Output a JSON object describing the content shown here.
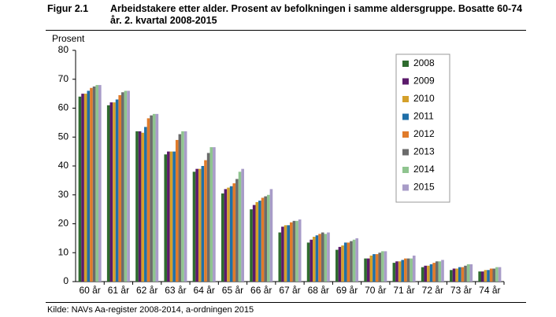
{
  "chart_data": {
    "type": "bar",
    "figure_label": "Figur 2.1",
    "title": "Arbeidstakere etter alder. Prosent av befolkningen i samme aldersgruppe. Bosatte 60-74 år. 2. kvartal 2008-2015",
    "y_label": "Prosent",
    "source": "Kilde: NAVs Aa-register 2008-2014, a-ordningen 2015",
    "categories": [
      "60 år",
      "61 år",
      "62 år",
      "63 år",
      "64 år",
      "65 år",
      "66 år",
      "67 år",
      "68 år",
      "69 år",
      "70 år",
      "71 år",
      "72 år",
      "73 år",
      "74 år"
    ],
    "series": [
      {
        "name": "2008",
        "color": "#2e6b2e",
        "values": [
          64,
          61,
          52,
          44,
          38,
          30.5,
          25,
          17,
          13.5,
          11,
          8,
          6.5,
          5,
          4,
          3.5
        ]
      },
      {
        "name": "2009",
        "color": "#5b1a6b",
        "values": [
          65,
          62,
          52,
          45,
          39,
          32,
          26.5,
          19,
          14.5,
          12,
          8,
          7,
          5.5,
          4.5,
          3.5
        ]
      },
      {
        "name": "2010",
        "color": "#d4a02a",
        "values": [
          65,
          62,
          51.5,
          45,
          39,
          32.5,
          27.5,
          19.5,
          15.5,
          12.5,
          9,
          7,
          5.5,
          4.5,
          4
        ]
      },
      {
        "name": "2011",
        "color": "#1f6fa8",
        "values": [
          66,
          63,
          53.5,
          45,
          40,
          33,
          28,
          19.5,
          16,
          13.5,
          9.5,
          7.5,
          6,
          5,
          4
        ]
      },
      {
        "name": "2012",
        "color": "#e07b2a",
        "values": [
          67,
          64.5,
          56.5,
          49,
          42,
          34,
          29,
          20.5,
          16.5,
          13.5,
          9.5,
          8,
          6.5,
          5,
          4.5
        ]
      },
      {
        "name": "2013",
        "color": "#6b6b6b",
        "values": [
          67.5,
          65.5,
          57.5,
          51,
          44.5,
          35.5,
          29.5,
          21,
          17,
          14,
          10,
          8,
          7,
          5.5,
          4.5
        ]
      },
      {
        "name": "2014",
        "color": "#8fc48f",
        "values": [
          68,
          66,
          58,
          52,
          46.5,
          38,
          30,
          21,
          16.5,
          14.5,
          10.5,
          8,
          7,
          6,
          5
        ]
      },
      {
        "name": "2015",
        "color": "#a89cc8",
        "values": [
          68,
          66,
          58,
          52,
          46.5,
          39,
          32,
          21.5,
          17,
          15,
          10.5,
          9,
          7.5,
          6,
          5
        ]
      }
    ],
    "ylim": [
      0,
      80
    ],
    "yticks": [
      0,
      10,
      20,
      30,
      40,
      50,
      60,
      70,
      80
    ],
    "grid": false,
    "legend": "upper-right"
  }
}
